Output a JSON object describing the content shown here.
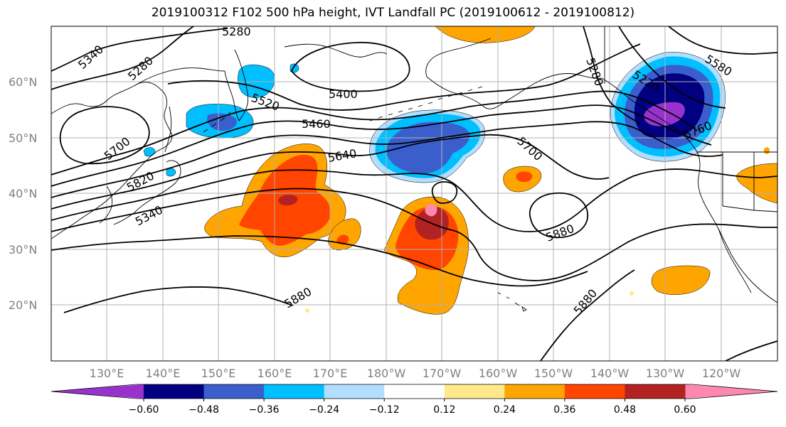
{
  "title": "2019100312 F102 500 hPa height, IVT Landfall PC (2019100612 - 2019100812)",
  "map": {
    "projection": "plate-carree",
    "lon_range": [
      120,
      250
    ],
    "lat_range": [
      10,
      70
    ],
    "grid": true,
    "coastlines": true,
    "lon_tick_labels": [
      "130°E",
      "140°E",
      "150°E",
      "160°E",
      "170°E",
      "180°W",
      "170°W",
      "160°W",
      "150°W",
      "140°W",
      "130°W",
      "120°W"
    ],
    "lat_tick_labels": [
      "20°N",
      "30°N",
      "40°N",
      "50°N",
      "60°N"
    ],
    "contour_labels": [
      "5280",
      "5340",
      "5280",
      "5400",
      "5520",
      "5460",
      "5700",
      "5640",
      "5820",
      "5340",
      "5280",
      "5220",
      "5580",
      "5760",
      "5700",
      "5880",
      "5880",
      "5880"
    ]
  },
  "colorbar": {
    "orientation": "horizontal",
    "extend": "both",
    "levels": [
      "-0.60",
      "−0.48",
      "−0.36",
      "−0.24",
      "−0.12",
      "0.12",
      "0.24",
      "0.36",
      "0.48",
      "0.60"
    ],
    "tick_labels": [
      "−0.60",
      "−0.48",
      "−0.36",
      "−0.24",
      "−0.12",
      "0.12",
      "0.24",
      "0.36",
      "0.48",
      "0.60"
    ],
    "colors": [
      "#9932cc",
      "#000080",
      "#3a5fcd",
      "#00bfff",
      "#b2dfff",
      "#ffffff",
      "#ffe98a",
      "#ffa500",
      "#ff4500",
      "#b22222",
      "#ff88b0"
    ]
  },
  "colors": {
    "contour": "#000000",
    "grid": "#b0b0b0",
    "tick_text": "#808080"
  }
}
